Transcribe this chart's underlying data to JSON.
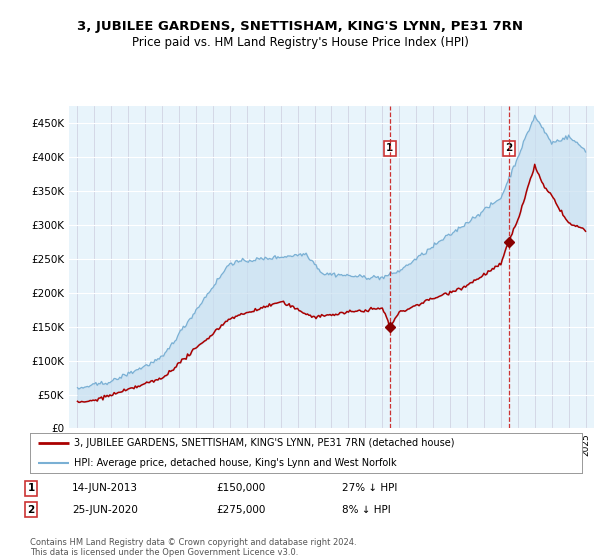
{
  "title1": "3, JUBILEE GARDENS, SNETTISHAM, KING'S LYNN, PE31 7RN",
  "title2": "Price paid vs. HM Land Registry's House Price Index (HPI)",
  "footer": "Contains HM Land Registry data © Crown copyright and database right 2024.\nThis data is licensed under the Open Government Licence v3.0.",
  "legend_line1": "3, JUBILEE GARDENS, SNETTISHAM, KING'S LYNN, PE31 7RN (detached house)",
  "legend_line2": "HPI: Average price, detached house, King's Lynn and West Norfolk",
  "sale1_label": "1",
  "sale1_date": "14-JUN-2013",
  "sale1_price": "£150,000",
  "sale1_hpi": "27% ↓ HPI",
  "sale2_label": "2",
  "sale2_date": "25-JUN-2020",
  "sale2_price": "£275,000",
  "sale2_hpi": "8% ↓ HPI",
  "hpi_color": "#7ab0d4",
  "price_color": "#aa0000",
  "marker_color": "#880000",
  "vline_color": "#cc3333",
  "fill_color": "#cce0f0",
  "bg_color": "#e8f2fa",
  "plot_bg": "#e8f4fb",
  "ylim": [
    0,
    475000
  ],
  "yticks": [
    0,
    50000,
    100000,
    150000,
    200000,
    250000,
    300000,
    350000,
    400000,
    450000
  ],
  "ytick_labels": [
    "£0",
    "£50K",
    "£100K",
    "£150K",
    "£200K",
    "£250K",
    "£300K",
    "£350K",
    "£400K",
    "£450K"
  ],
  "sale1_x": 2013.45,
  "sale1_y": 150000,
  "sale2_x": 2020.48,
  "sale2_y": 275000,
  "xlim": [
    1994.5,
    2025.5
  ]
}
